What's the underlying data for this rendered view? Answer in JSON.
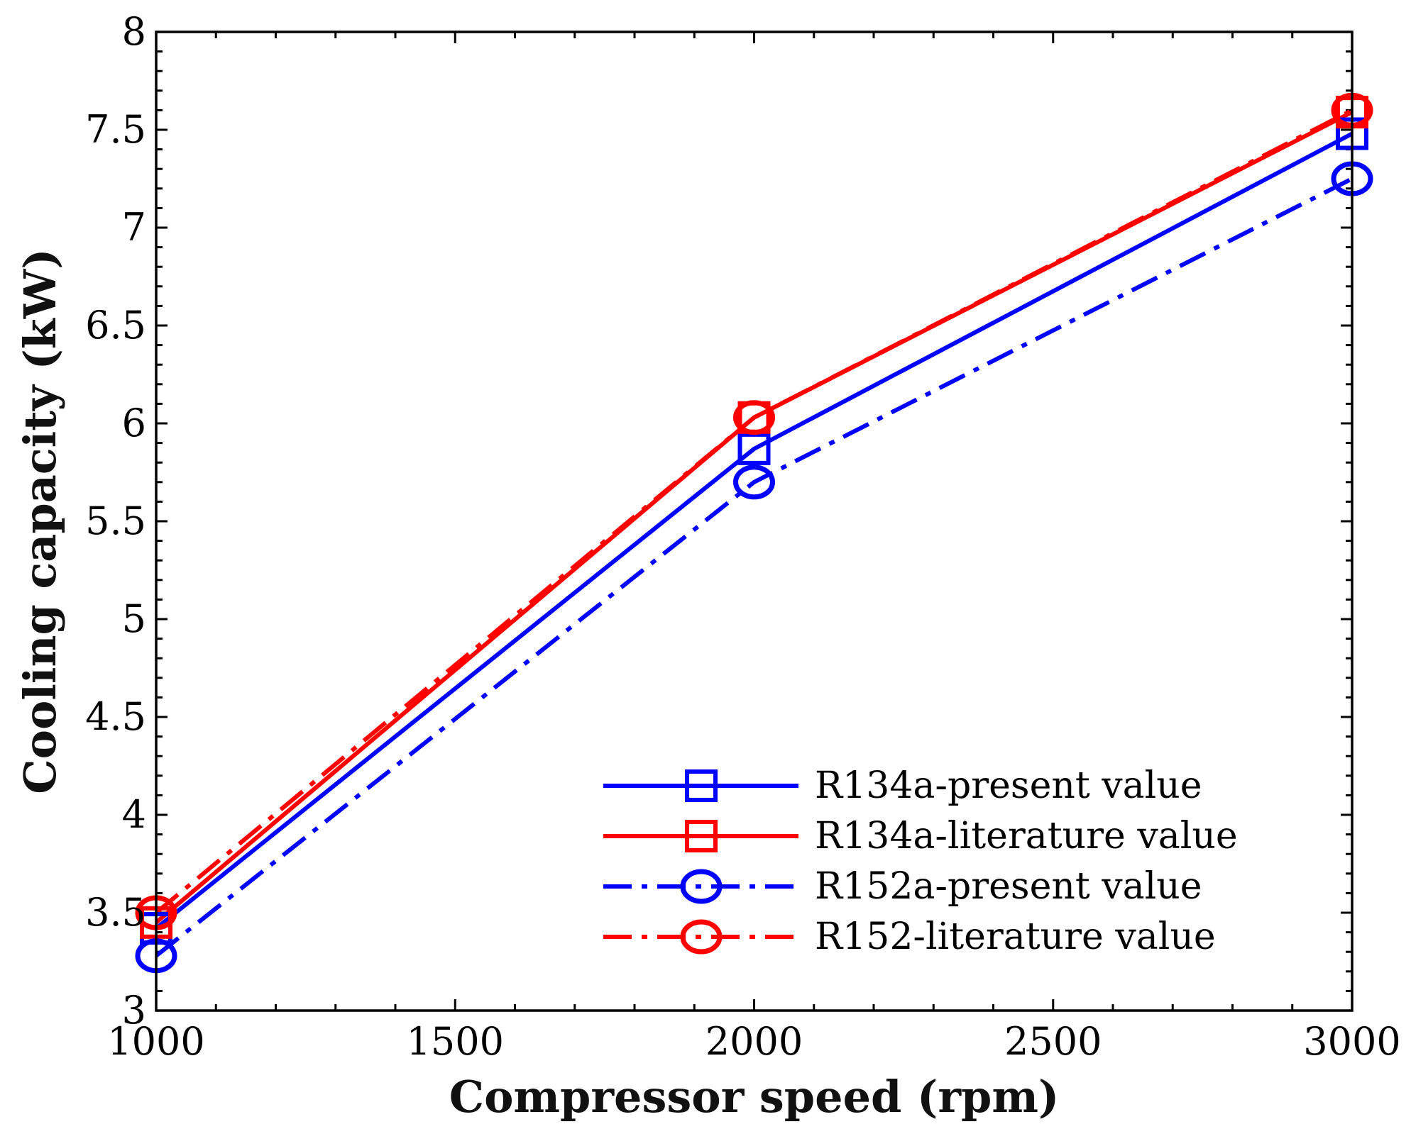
{
  "chart_data": {
    "type": "line",
    "title": "",
    "xlabel": "Compressor speed (rpm)",
    "ylabel": "Cooling capacity (kW)",
    "x": [
      1000,
      2000,
      3000
    ],
    "xlim": [
      1000,
      3000
    ],
    "ylim": [
      3,
      8
    ],
    "xticks": [
      1000,
      1500,
      2000,
      2500,
      3000
    ],
    "yticks": [
      3,
      3.5,
      4,
      4.5,
      5,
      5.5,
      6,
      6.5,
      7,
      7.5,
      8
    ],
    "xtick_labels": [
      "1000",
      "1500",
      "2000",
      "2500",
      "3000"
    ],
    "ytick_labels": [
      "3",
      "3.5",
      "4",
      "4.5",
      "5",
      "5.5",
      "6",
      "6.5",
      "7",
      "7.5",
      "8"
    ],
    "grid": false,
    "legend_position": "bottom-right",
    "series": [
      {
        "name": "R134a-present value",
        "values": [
          3.42,
          5.87,
          7.48
        ],
        "color": "#0000ff",
        "dash": "solid",
        "marker": "square"
      },
      {
        "name": "R134a-literature value",
        "values": [
          3.45,
          6.03,
          7.59
        ],
        "color": "#ff0000",
        "dash": "solid",
        "marker": "square"
      },
      {
        "name": "R152a-present value",
        "values": [
          3.28,
          5.7,
          7.25
        ],
        "color": "#0000ff",
        "dash": "dashdot",
        "marker": "circle"
      },
      {
        "name": "R152-literature value",
        "values": [
          3.5,
          6.03,
          7.6
        ],
        "color": "#ff0000",
        "dash": "dashdot",
        "marker": "circle"
      }
    ]
  }
}
